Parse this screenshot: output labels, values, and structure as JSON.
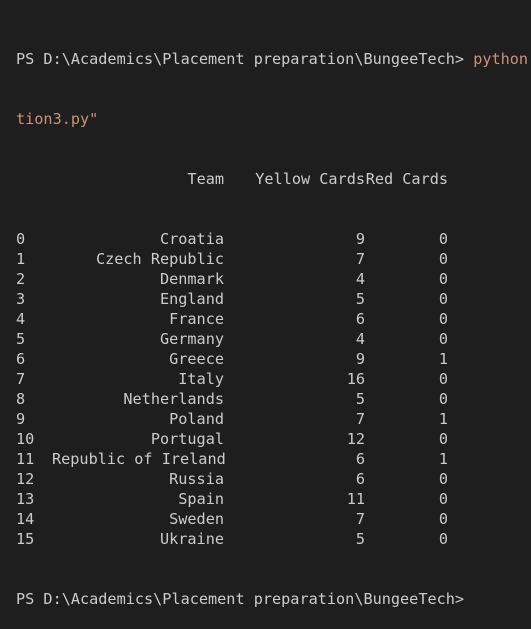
{
  "prompt": "PS D:\\Academics\\Placement preparation\\BungeeTech> ",
  "command_part1": "python",
  "command_part2": "tion3.py\"",
  "table": {
    "headers": {
      "team": "Team",
      "yellow": "Yellow Cards",
      "red": "Red Cards"
    },
    "rows": [
      {
        "idx": "0",
        "team": "Croatia",
        "yellow": "9",
        "red": "0"
      },
      {
        "idx": "1",
        "team": "Czech Republic",
        "yellow": "7",
        "red": "0"
      },
      {
        "idx": "2",
        "team": "Denmark",
        "yellow": "4",
        "red": "0"
      },
      {
        "idx": "3",
        "team": "England",
        "yellow": "5",
        "red": "0"
      },
      {
        "idx": "4",
        "team": "France",
        "yellow": "6",
        "red": "0"
      },
      {
        "idx": "5",
        "team": "Germany",
        "yellow": "4",
        "red": "0"
      },
      {
        "idx": "6",
        "team": "Greece",
        "yellow": "9",
        "red": "1"
      },
      {
        "idx": "7",
        "team": "Italy",
        "yellow": "16",
        "red": "0"
      },
      {
        "idx": "8",
        "team": "Netherlands",
        "yellow": "5",
        "red": "0"
      },
      {
        "idx": "9",
        "team": "Poland",
        "yellow": "7",
        "red": "1"
      },
      {
        "idx": "10",
        "team": "Portugal",
        "yellow": "12",
        "red": "0"
      },
      {
        "idx": "11",
        "team": "Republic of Ireland",
        "yellow": "6",
        "red": "1"
      },
      {
        "idx": "12",
        "team": "Russia",
        "yellow": "6",
        "red": "0"
      },
      {
        "idx": "13",
        "team": "Spain",
        "yellow": "11",
        "red": "0"
      },
      {
        "idx": "14",
        "team": "Sweden",
        "yellow": "7",
        "red": "0"
      },
      {
        "idx": "15",
        "team": "Ukraine",
        "yellow": "5",
        "red": "0"
      }
    ]
  },
  "final_prompt": "PS D:\\Academics\\Placement preparation\\BungeeTech>",
  "colors": {
    "background": "#1e1e1e",
    "text": "#cccccc",
    "command": "#ce9178"
  }
}
